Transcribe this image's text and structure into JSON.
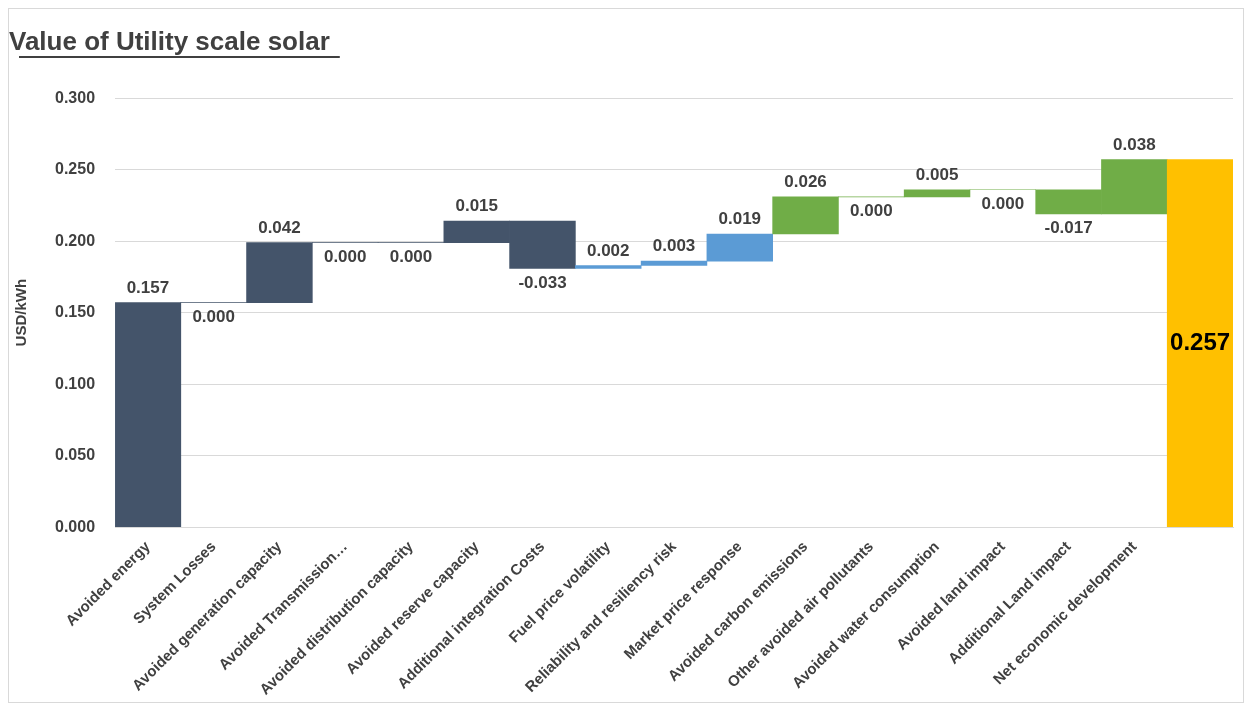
{
  "chart_data": {
    "type": "bar",
    "title": "Value of Utility scale solar",
    "ylabel": "USD/kWh",
    "categories": [
      "Avoided energy",
      "System Losses",
      "Avoided generation capacity",
      "Avoided Transmission…",
      "Avoided distribution capacity",
      "Avoided reserve capacity",
      "Additional integration Costs",
      "Fuel price volatility",
      "Reliability and resiliency risk",
      "Market price response",
      "Avoided carbon emissions",
      "Other avoided air pollutants",
      "Avoided water consumption",
      "Avoided land impact",
      "Additional Land impact",
      "Net economic development",
      null
    ],
    "values": [
      0.157,
      0,
      0.042,
      0,
      0,
      0.015,
      -0.033,
      0.002,
      0.003,
      0.019,
      0.026,
      0,
      0.005,
      0,
      -0.017,
      0.038,
      0.257
    ],
    "base": [
      0,
      0.157,
      0.157,
      0.199,
      0.199,
      0.199,
      0.214,
      0.181,
      0.183,
      0.186,
      0.205,
      0.231,
      0.231,
      0.236,
      0.236,
      0.219,
      0
    ],
    "colors": [
      "#44546a",
      "#44546a",
      "#44546a",
      "#44546a",
      "#44546a",
      "#44546a",
      "#44546a",
      "#5b9bd5",
      "#5b9bd5",
      "#5b9bd5",
      "#70ad47",
      "#70ad47",
      "#70ad47",
      "#70ad47",
      "#70ad47",
      "#70ad47",
      "#ffc000"
    ],
    "ylim": [
      0,
      0.3
    ],
    "yticks": [
      {
        "value": 0,
        "label": "0.000"
      },
      {
        "value": 0.05,
        "label": "0.050"
      },
      {
        "value": 0.1,
        "label": "0.100"
      },
      {
        "value": 0.15,
        "label": "0.150"
      },
      {
        "value": 0.2,
        "label": "0.200"
      },
      {
        "value": 0.25,
        "label": "0.250"
      },
      {
        "value": 0.3,
        "label": "0.300"
      }
    ],
    "grid": "y",
    "legend": false,
    "value_labels": [
      "0.157",
      "0.000",
      "0.042",
      "0.000",
      "0.000",
      "0.015",
      "-0.033",
      "0.002",
      "0.003",
      "0.019",
      "0.026",
      "0.000",
      "0.005",
      "0.000",
      "-0.017",
      "0.038",
      "0.257"
    ]
  }
}
